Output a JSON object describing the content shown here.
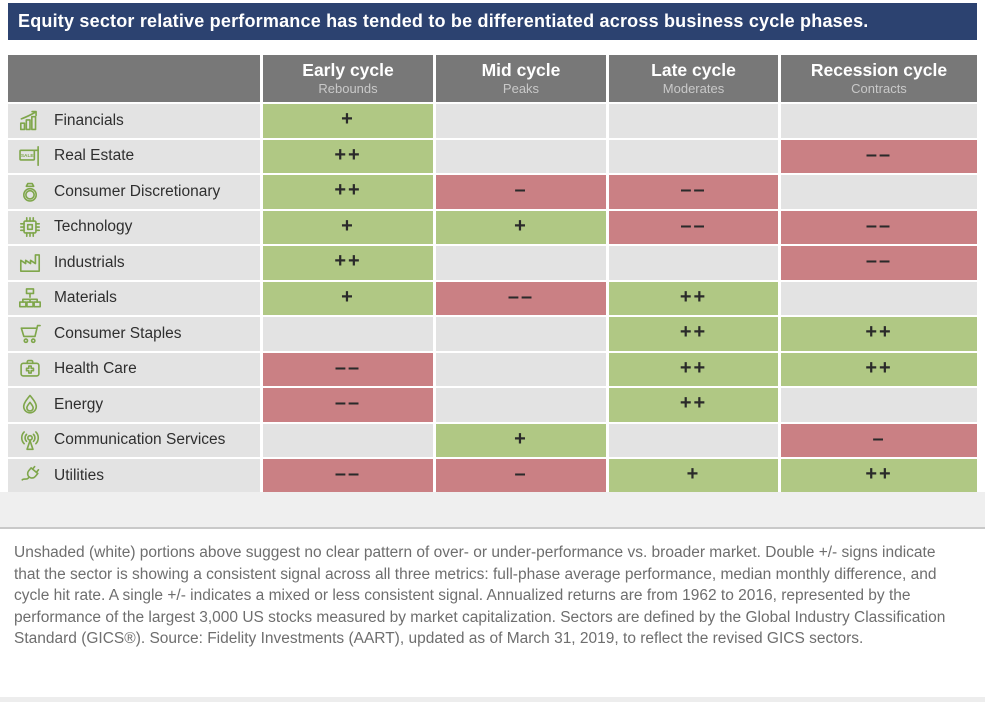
{
  "title": "Equity sector relative performance has tended to be differentiated across business cycle phases.",
  "table": {
    "columns": [
      {
        "label": "Early cycle",
        "sublabel": "Rebounds"
      },
      {
        "label": "Mid cycle",
        "sublabel": "Peaks"
      },
      {
        "label": "Late cycle",
        "sublabel": "Moderates"
      },
      {
        "label": "Recession cycle",
        "sublabel": "Contracts"
      }
    ],
    "rows": [
      {
        "sector": "Financials",
        "icon": "financials-icon",
        "cells": [
          {
            "value": "+",
            "state": "positive"
          },
          {
            "value": "",
            "state": "none"
          },
          {
            "value": "",
            "state": "none"
          },
          {
            "value": "",
            "state": "none"
          }
        ]
      },
      {
        "sector": "Real Estate",
        "icon": "real-estate-icon",
        "cells": [
          {
            "value": "++",
            "state": "positive"
          },
          {
            "value": "",
            "state": "none"
          },
          {
            "value": "",
            "state": "none"
          },
          {
            "value": "––",
            "state": "negative"
          }
        ]
      },
      {
        "sector": "Consumer Discretionary",
        "icon": "consumer-discretionary-icon",
        "cells": [
          {
            "value": "++",
            "state": "positive"
          },
          {
            "value": "–",
            "state": "negative"
          },
          {
            "value": "––",
            "state": "negative"
          },
          {
            "value": "",
            "state": "none"
          }
        ]
      },
      {
        "sector": "Technology",
        "icon": "technology-icon",
        "cells": [
          {
            "value": "+",
            "state": "positive"
          },
          {
            "value": "+",
            "state": "positive"
          },
          {
            "value": "––",
            "state": "negative"
          },
          {
            "value": "––",
            "state": "negative"
          }
        ]
      },
      {
        "sector": "Industrials",
        "icon": "industrials-icon",
        "cells": [
          {
            "value": "++",
            "state": "positive"
          },
          {
            "value": "",
            "state": "none"
          },
          {
            "value": "",
            "state": "none"
          },
          {
            "value": "––",
            "state": "negative"
          }
        ]
      },
      {
        "sector": "Materials",
        "icon": "materials-icon",
        "cells": [
          {
            "value": "+",
            "state": "positive"
          },
          {
            "value": "––",
            "state": "negative"
          },
          {
            "value": "++",
            "state": "positive"
          },
          {
            "value": "",
            "state": "none"
          }
        ]
      },
      {
        "sector": "Consumer Staples",
        "icon": "consumer-staples-icon",
        "cells": [
          {
            "value": "",
            "state": "none"
          },
          {
            "value": "",
            "state": "none"
          },
          {
            "value": "++",
            "state": "positive"
          },
          {
            "value": "++",
            "state": "positive"
          }
        ]
      },
      {
        "sector": "Health Care",
        "icon": "health-care-icon",
        "cells": [
          {
            "value": "––",
            "state": "negative"
          },
          {
            "value": "",
            "state": "none"
          },
          {
            "value": "++",
            "state": "positive"
          },
          {
            "value": "++",
            "state": "positive"
          }
        ]
      },
      {
        "sector": "Energy",
        "icon": "energy-icon",
        "cells": [
          {
            "value": "––",
            "state": "negative"
          },
          {
            "value": "",
            "state": "none"
          },
          {
            "value": "++",
            "state": "positive"
          },
          {
            "value": "",
            "state": "none"
          }
        ]
      },
      {
        "sector": "Communication Services",
        "icon": "communication-services-icon",
        "cells": [
          {
            "value": "",
            "state": "none"
          },
          {
            "value": "+",
            "state": "positive"
          },
          {
            "value": "",
            "state": "none"
          },
          {
            "value": "–",
            "state": "negative"
          }
        ]
      },
      {
        "sector": "Utilities",
        "icon": "utilities-icon",
        "cells": [
          {
            "value": "––",
            "state": "negative"
          },
          {
            "value": "–",
            "state": "negative"
          },
          {
            "value": "+",
            "state": "positive"
          },
          {
            "value": "++",
            "state": "positive"
          }
        ]
      }
    ]
  },
  "palette": {
    "banner_navy": "#2c4270",
    "header_gray": "#787878",
    "header_subtext": "#c9c9c9",
    "positive_green": "#b0c884",
    "negative_red": "#ca8084",
    "neutral_gray": "#e3e3e3",
    "icon_green": "#7fa64b"
  },
  "footnote": "Unshaded (white) portions above suggest no clear pattern of over- or under-performance vs. broader market. Double +/- signs indicate that the sector is showing a consistent signal across all three metrics: full-phase average performance, median monthly difference, and cycle hit rate. A single +/- indicates a mixed or less consistent signal. Annualized returns are from 1962 to 2016, represented by the performance of the largest 3,000 US stocks measured by market capitalization. Sectors are defined by the Global Industry Classification Standard (GICS®). Source: Fidelity Investments (AART), updated as of March 31, 2019, to reflect the revised GICS sectors.",
  "chart_data": {
    "type": "heatmap",
    "title": "Equity sector relative performance has tended to be differentiated across business cycle phases.",
    "columns": [
      "Early cycle (Rebounds)",
      "Mid cycle (Peaks)",
      "Late cycle (Moderates)",
      "Recession cycle (Contracts)"
    ],
    "rows": [
      "Financials",
      "Real Estate",
      "Consumer Discretionary",
      "Technology",
      "Industrials",
      "Materials",
      "Consumer Staples",
      "Health Care",
      "Energy",
      "Communication Services",
      "Utilities"
    ],
    "values": [
      [
        "+",
        "",
        "",
        ""
      ],
      [
        "++",
        "",
        "",
        "--"
      ],
      [
        "++",
        "-",
        "--",
        ""
      ],
      [
        "+",
        "+",
        "--",
        "--"
      ],
      [
        "++",
        "",
        "",
        "--"
      ],
      [
        "+",
        "--",
        "++",
        ""
      ],
      [
        "",
        "",
        "++",
        "++"
      ],
      [
        "--",
        "",
        "++",
        "++"
      ],
      [
        "--",
        "",
        "++",
        ""
      ],
      [
        "",
        "+",
        "",
        "-"
      ],
      [
        "--",
        "-",
        "+",
        "++"
      ]
    ],
    "legend": {
      "++": "strong overperform (green)",
      "+": "mixed overperform (green)",
      "-": "mixed underperform (red)",
      "--": "strong underperform (red)",
      "": "no clear pattern (gray)"
    }
  }
}
